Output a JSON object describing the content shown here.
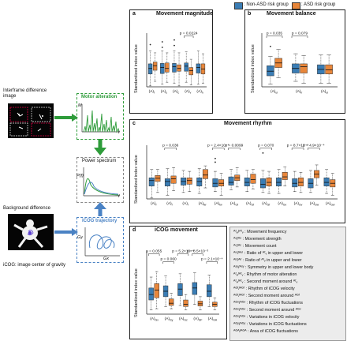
{
  "colors": {
    "non_asd": "#3a7db5",
    "asd": "#e8863a",
    "green": "#2e9c3a",
    "blue_dash": "#4a82c4"
  },
  "legend": {
    "non_asd": ": Non-ASD risk group",
    "asd": ": ASD risk group"
  },
  "left": {
    "interframe_label": "Interframe difference image",
    "motor_alteration": "Motor alteration",
    "m_axis": "M",
    "t_axis": "t",
    "power_spectrum": "Power spectrum",
    "pf_axis": "P(f)",
    "f_axis": "f",
    "background_label": "Background difference",
    "icog_trajectory": "iCOG trajectory",
    "gy_axis": "Gy",
    "gx_axis": "Gx",
    "icog_caption": "iCOG: image center of gravity"
  },
  "panels": {
    "a": {
      "letter": "a",
      "title": "Movement magnitude",
      "ylabel": "Standardized index value",
      "ticks": [
        "(A)",
        "(A)",
        "(A)",
        "(A)",
        "(A)"
      ],
      "ticksubs": [
        "f",
        "s",
        "c",
        "v",
        "h"
      ],
      "pvals": [
        "p = 0.0224"
      ]
    },
    "b": {
      "letter": "b",
      "title": "Movement balance",
      "ylabel": "Standardized index value",
      "ticks": [
        "(A)",
        "(A)",
        "(A)"
      ],
      "ticksubs": [
        "ul",
        "lr",
        "ul"
      ],
      "pvals": [
        "p = 0.035",
        "p = 0.079"
      ]
    },
    "c": {
      "letter": "c",
      "title": "Movement rhyrhm",
      "ylabel": "Standardized index value",
      "ticks": [
        "(A)",
        "(A)",
        "(A)",
        "(A)",
        "(A)",
        "(A)",
        "(A)",
        "(A)",
        "(A)",
        "(A)",
        "(A)",
        "(A)"
      ],
      "ticksubs": [
        "f",
        "f",
        "f",
        "fw",
        "fw",
        "Gf",
        "Gf",
        "Gf",
        "Gv",
        "Gv",
        "Gw",
        "Gw"
      ],
      "pvals": [
        "p = 0.036",
        "p = 2.4×10⁻⁴",
        "p = 0.0099",
        "p = 0.070",
        "p = 8.7×10⁻⁴",
        "p = 4.9×10⁻⁴"
      ]
    },
    "d": {
      "letter": "d",
      "title": "iCOG movement",
      "ylabel": "Standardized index value",
      "ticks": [
        "(A)",
        "(A)",
        "(A)",
        "(A)",
        "(A)"
      ],
      "ticksubs": [
        "Gx",
        "Gy",
        "Gz",
        "GF",
        "GA"
      ],
      "pvals": [
        "p = 0.055",
        "p = 5.2×10⁻⁴",
        "p = 8.5×10⁻³",
        "p = 0.060",
        "p = 2.1×10⁻⁴"
      ]
    }
  },
  "param_legend": [
    "ᴬᶠₑ/ᴬᶠᵥ : Movement frequency",
    "ᴬˢ/ᴬˢ : Movement strength",
    "ᴬᶜ/ᴬᶜ : Movement count",
    "ᴬᵘˡ/ᴬᵘˡ : Ratio of ᴬᶠᵥ in upper and lower",
    "ᴬˡʳ/ᴬˡʳ : Ratio of ᴬᶠᵥ in upper and lower",
    "ᴬˢʸ/ᴬˢʸ : Symmetry in upper and lower body",
    "ᴬᶠᵥ/ᴬᶠᵥ : Rhythm of motor alteration",
    "ᴬᶠᵥ/ᴬᶠᵥ : Second moment around ᴬᶠᵥ",
    "ᴬᴳᶠ/ᴬᴳᶠ : Rhythm of iCOG velocity",
    "ᴬᴳᶠ/ᴬᴳᶠ : Second moment around ᴬᴳᶠ",
    "ᴬᴳᵛ/ᴬᴳᵛ : Rhythm of iCOG fluctuations",
    "ᴬᴳᵛ/ᴬᴳᵛ : Second moment around ᴬᴳᵛ",
    "ᴬᴳˣ/ᴬᴳˣ : Variations in iCOG velocity",
    "ᴬᴳʸ/ᴬᴳʸ : Variations in iCOG fluctuations",
    "ᴬᴳᴬ/ᴬᴳᴬ : Area of iCOG fluctuations"
  ],
  "chart_data": [
    {
      "type": "box",
      "panel": "a",
      "title": "Movement magnitude",
      "ylabel": "Standardized index value",
      "series": [
        {
          "name": ": Non-ASD risk group",
          "boxes": [
            [
              -1.9,
              -0.6,
              0.0,
              0.5,
              1.9
            ],
            [
              -1.7,
              -0.55,
              0.1,
              0.55,
              1.9
            ],
            [
              -1.6,
              -0.4,
              0.2,
              0.55,
              1.9
            ],
            [
              -1.5,
              -0.3,
              0.25,
              0.6,
              1.8
            ],
            [
              -1.7,
              -0.5,
              0.1,
              0.5,
              1.9
            ]
          ],
          "outliers": [
            [
              2.6
            ],
            [
              2.3,
              2.9
            ],
            [
              2.5,
              3.1
            ],
            [],
            []
          ]
        },
        {
          "name": ": ASD risk group",
          "boxes": [
            [
              -1.4,
              -0.2,
              0.3,
              0.7,
              1.7
            ],
            [
              -1.5,
              -0.4,
              0.0,
              0.6,
              1.7
            ],
            [
              -1.9,
              -0.3,
              0.0,
              0.4,
              1.7
            ],
            [
              -1.8,
              -0.7,
              -0.25,
              0.1,
              1.0
            ],
            [
              -1.6,
              -0.6,
              -0.05,
              0.5,
              1.6
            ]
          ],
          "outliers": [
            [],
            [],
            [],
            [],
            []
          ]
        }
      ]
    },
    {
      "type": "box",
      "panel": "b",
      "title": "Movement balance",
      "ylabel": "Standardized index value",
      "series": [
        {
          "name": ": Non-ASD risk group",
          "boxes": [
            [
              -1.7,
              -0.8,
              -0.3,
              0.3,
              1.3
            ],
            [
              -1.4,
              -0.5,
              0.0,
              0.5,
              1.6
            ],
            [
              -1.6,
              -0.6,
              -0.1,
              0.4,
              1.5
            ]
          ],
          "outliers": [
            [
              2.4
            ],
            [],
            []
          ]
        },
        {
          "name": ": ASD risk group",
          "boxes": [
            [
              -1.0,
              0.1,
              0.6,
              1.1,
              2.1
            ],
            [
              -1.6,
              -0.5,
              0.2,
              0.5,
              1.4
            ],
            [
              -1.6,
              -0.6,
              -0.15,
              0.4,
              1.5
            ]
          ],
          "outliers": [
            [],
            [],
            []
          ]
        }
      ]
    },
    {
      "type": "box",
      "panel": "c",
      "title": "Movement rhyrhm",
      "ylabel": "Standardized index value",
      "series": [
        {
          "name": ": Non-ASD risk group",
          "boxes": [
            [
              -1.9,
              -0.6,
              0.0,
              0.3,
              1.2
            ],
            [
              -1.6,
              -0.6,
              -0.1,
              0.2,
              1.3
            ],
            [
              -1.3,
              -0.5,
              -0.1,
              0.3,
              1.1
            ],
            [
              -1.4,
              -0.6,
              -0.1,
              0.3,
              1.3
            ],
            [
              -1.2,
              -0.7,
              -0.3,
              0.2,
              1.0
            ],
            [
              -1.0,
              -0.5,
              -0.2,
              0.4,
              1.2
            ],
            [
              -1.2,
              -0.6,
              -0.2,
              0.3,
              1.1
            ],
            [
              -1.3,
              -0.8,
              -0.4,
              0.2,
              1.1
            ],
            [
              -1.4,
              -0.6,
              -0.2,
              0.3,
              1.2
            ],
            [
              -1.2,
              -0.7,
              -0.3,
              0.2,
              1.0
            ],
            [
              -1.3,
              -0.8,
              -0.3,
              0.2,
              1.1
            ],
            [
              -1.4,
              -0.6,
              -0.2,
              0.3,
              1.2
            ]
          ],
          "outliers": [
            [],
            [],
            [],
            [],
            [
              2.0,
              2.4
            ],
            [],
            [],
            [
              3.0
            ],
            [],
            [],
            [],
            []
          ]
        },
        {
          "name": ": ASD risk group",
          "boxes": [
            [
              -1.3,
              -0.1,
              0.25,
              0.55,
              1.2
            ],
            [
              -1.1,
              -0.3,
              0.2,
              0.5,
              1.4
            ],
            [
              -1.2,
              -0.4,
              0.0,
              0.3,
              1.0
            ],
            [
              -0.8,
              0.2,
              0.6,
              1.2,
              1.6
            ],
            [
              -1.6,
              -0.6,
              -0.3,
              0.1,
              0.8
            ],
            [
              -0.7,
              0.0,
              0.3,
              0.6,
              1.4
            ],
            [
              -0.9,
              -0.3,
              0.1,
              0.7,
              1.2
            ],
            [
              -1.4,
              -0.6,
              -0.2,
              0.3,
              1.0
            ],
            [
              -0.6,
              0.1,
              0.4,
              0.9,
              1.5
            ],
            [
              -1.3,
              -0.6,
              -0.2,
              0.3,
              0.9
            ],
            [
              -0.5,
              0.3,
              0.7,
              1.1,
              1.7
            ],
            [
              -1.6,
              -0.7,
              -0.3,
              0.1,
              0.8
            ]
          ],
          "outliers": [
            [],
            [],
            [],
            [],
            [],
            [],
            [],
            [],
            [],
            [],
            [],
            []
          ]
        }
      ]
    },
    {
      "type": "box",
      "panel": "d",
      "title": "iCOG movement",
      "ylabel": "Standardized index value",
      "series": [
        {
          "name": ": Non-ASD risk group",
          "boxes": [
            [
              -1.6,
              -0.7,
              -0.2,
              0.4,
              1.4
            ],
            [
              -1.3,
              -0.4,
              0.1,
              0.6,
              1.5
            ],
            [
              -1.2,
              -0.3,
              0.3,
              0.8,
              1.7
            ],
            [
              -1.1,
              -0.2,
              0.4,
              0.9,
              1.8
            ],
            [
              -1.3,
              -0.4,
              0.1,
              0.7,
              1.6
            ]
          ],
          "outliers": [
            [],
            [],
            [],
            [],
            []
          ]
        },
        {
          "name": ": ASD risk group",
          "boxes": [
            [
              -1.5,
              -0.5,
              0.2,
              0.8,
              1.9
            ],
            [
              -1.5,
              -1.2,
              -1.0,
              -0.6,
              -0.1
            ],
            [
              -1.6,
              -1.3,
              -1.1,
              -0.7,
              -0.2
            ],
            [
              -1.6,
              -1.25,
              -1.05,
              -0.8,
              -0.4
            ],
            [
              -1.6,
              -1.3,
              -1.1,
              -0.9,
              -0.5
            ]
          ],
          "outliers": [
            [],
            [],
            [],
            [],
            []
          ]
        }
      ]
    }
  ]
}
